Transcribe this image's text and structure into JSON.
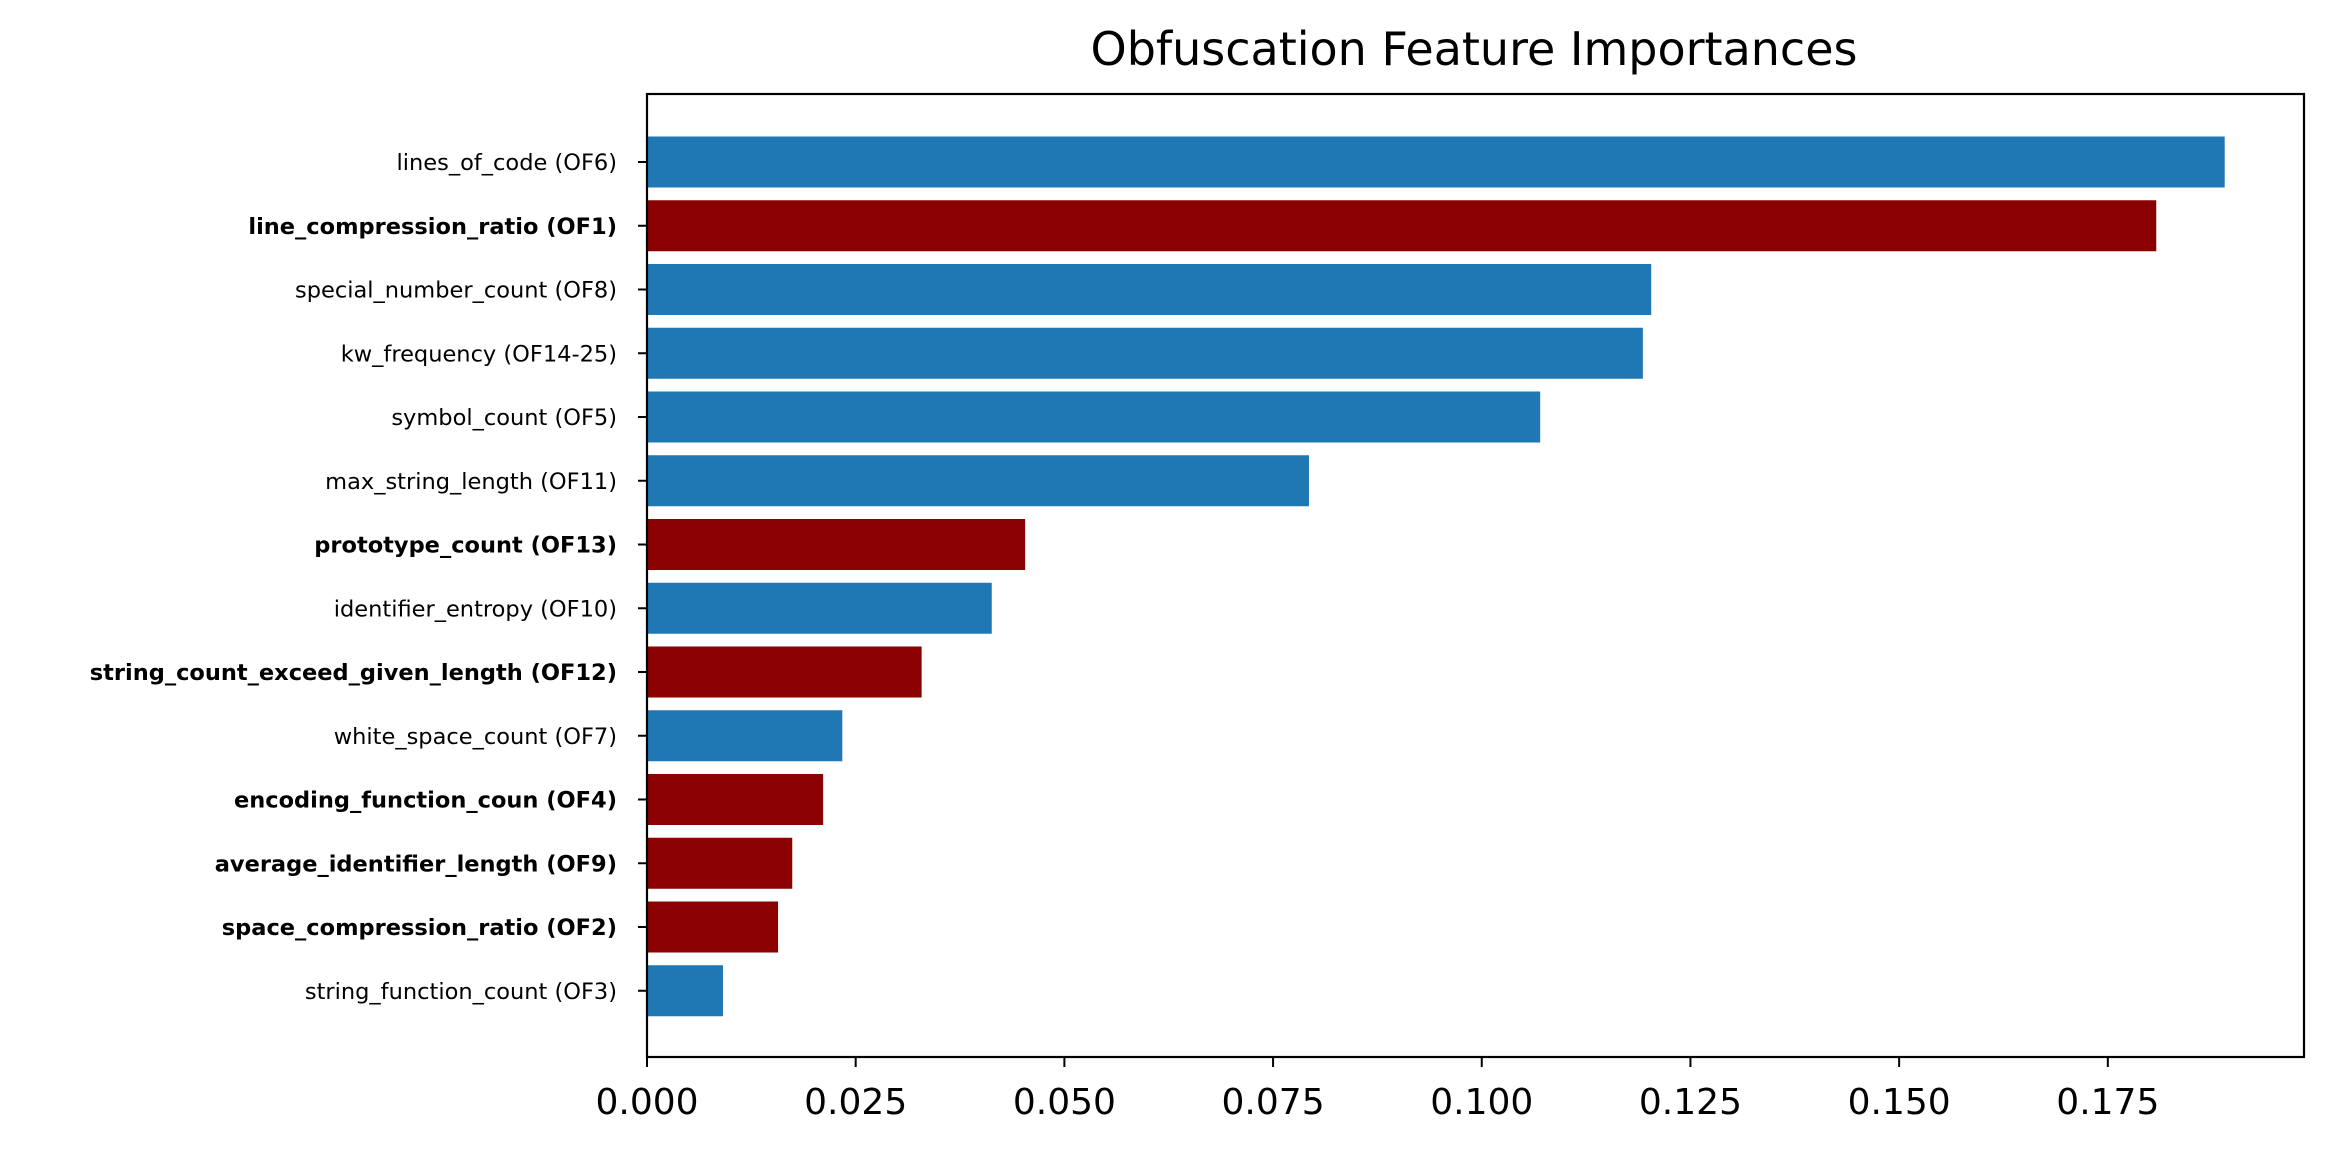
{
  "chart_data": {
    "type": "bar",
    "orientation": "horizontal",
    "title": "Obfuscation Feature Importances",
    "xlabel": "",
    "ylabel": "",
    "xlim": [
      0,
      0.1985
    ],
    "xticks": [
      "0.000",
      "0.025",
      "0.050",
      "0.075",
      "0.100",
      "0.125",
      "0.150",
      "0.175"
    ],
    "grid": false,
    "colors": {
      "default": "#1f77b4",
      "highlight": "#8b0000"
    },
    "bars": [
      {
        "label": "lines_of_code (OF6)",
        "value": 0.189,
        "highlight": false
      },
      {
        "label": "line_compression_ratio (OF1)",
        "value": 0.1808,
        "highlight": true
      },
      {
        "label": "special_number_count (OF8)",
        "value": 0.1203,
        "highlight": false
      },
      {
        "label": "kw_frequency (OF14-25)",
        "value": 0.1193,
        "highlight": false
      },
      {
        "label": "symbol_count (OF5)",
        "value": 0.107,
        "highlight": false
      },
      {
        "label": "max_string_length (OF11)",
        "value": 0.0793,
        "highlight": false
      },
      {
        "label": "prototype_count (OF13)",
        "value": 0.0453,
        "highlight": true
      },
      {
        "label": "identifier_entropy (OF10)",
        "value": 0.0413,
        "highlight": false
      },
      {
        "label": "string_count_exceed_given_length (OF12)",
        "value": 0.0329,
        "highlight": true
      },
      {
        "label": "white_space_count (OF7)",
        "value": 0.0234,
        "highlight": false
      },
      {
        "label": "encoding_function_coun (OF4)",
        "value": 0.0211,
        "highlight": true
      },
      {
        "label": "average_identifier_length (OF9)",
        "value": 0.0174,
        "highlight": true
      },
      {
        "label": "space_compression_ratio (OF2)",
        "value": 0.0157,
        "highlight": true
      },
      {
        "label": "string_function_count (OF3)",
        "value": 0.0091,
        "highlight": false
      }
    ]
  }
}
